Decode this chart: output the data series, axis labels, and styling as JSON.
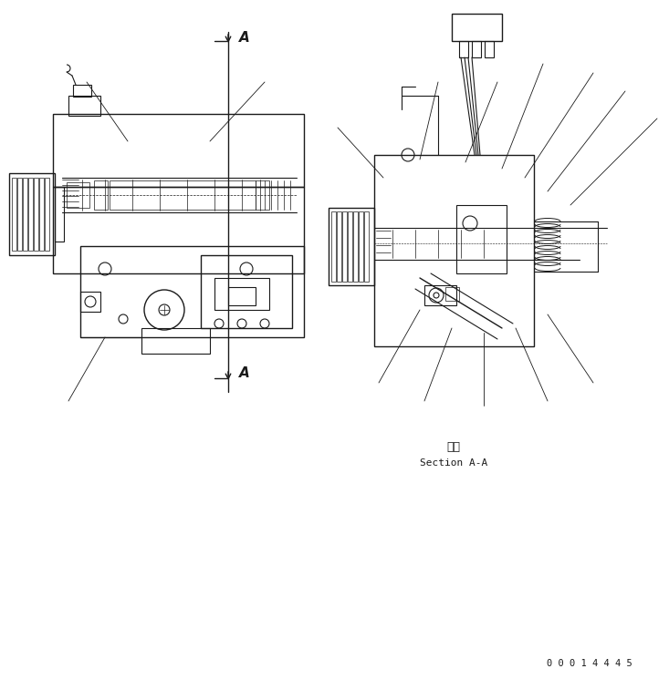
{
  "bg_color": "#ffffff",
  "line_color": "#1a1a1a",
  "fig_width": 7.33,
  "fig_height": 7.45,
  "dpi": 100,
  "section_label_japanese": "断面",
  "section_label_english": "Section A-A",
  "part_number": "0 0 0 1 4 4 4 5",
  "lw_main": 1.0,
  "lw_thin": 0.6,
  "lw_med": 0.8
}
